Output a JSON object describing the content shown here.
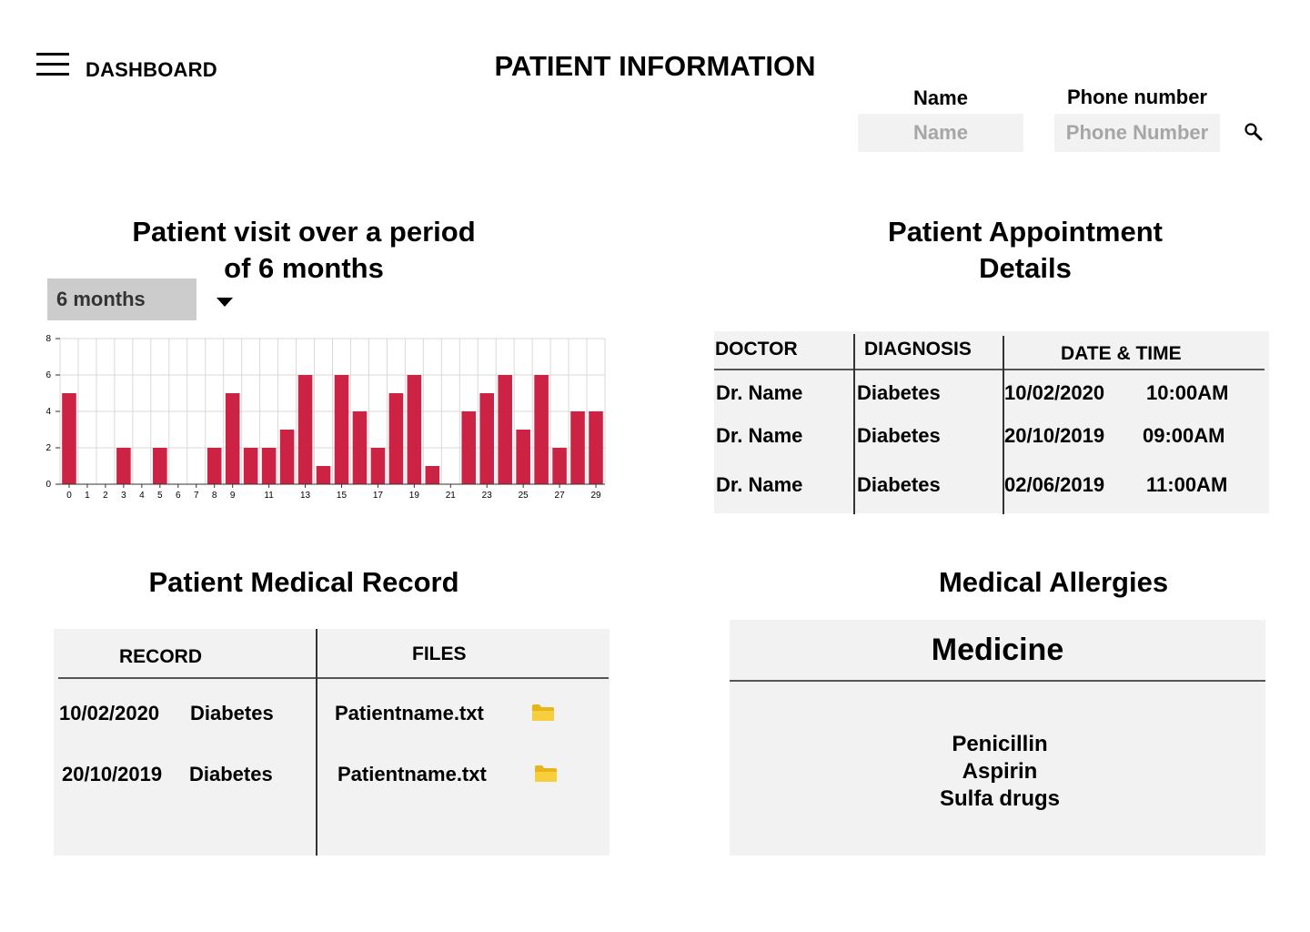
{
  "header": {
    "menu_icon": "hamburger-menu-icon",
    "dashboard_label": "DASHBOARD",
    "page_title": "PATIENT INFORMATION"
  },
  "search": {
    "name_label": "Name",
    "name_placeholder": "Name",
    "phone_label": "Phone number",
    "phone_placeholder": "Phone Number",
    "search_icon": "search-icon"
  },
  "visits": {
    "title_line1": "Patient visit over a period",
    "title_line2": "of 6 months",
    "period_selected": "6 months"
  },
  "appointments": {
    "title_line1": "Patient Appointment",
    "title_line2": "Details",
    "columns": [
      "DOCTOR",
      "DIAGNOSIS",
      "DATE & TIME"
    ],
    "rows": [
      {
        "doctor": "Dr. Name",
        "diagnosis": "Diabetes",
        "date": "10/02/2020",
        "time": "10:00AM"
      },
      {
        "doctor": "Dr. Name",
        "diagnosis": "Diabetes",
        "date": "20/10/2019",
        "time": "09:00AM"
      },
      {
        "doctor": "Dr. Name",
        "diagnosis": "Diabetes",
        "date": "02/06/2019",
        "time": "11:00AM"
      }
    ]
  },
  "medical_record": {
    "title": "Patient Medical Record",
    "columns": [
      "RECORD",
      "FILES"
    ],
    "rows": [
      {
        "date": "10/02/2020",
        "diagnosis": "Diabetes",
        "file": "Patientname.txt",
        "icon": "folder-icon"
      },
      {
        "date": "20/10/2019",
        "diagnosis": "Diabetes",
        "file": "Patientname.txt",
        "icon": "folder-icon"
      }
    ]
  },
  "allergies": {
    "title": "Medical Allergies",
    "column": "Medicine",
    "items": [
      "Penicillin",
      "Aspirin",
      "Sulfa drugs"
    ]
  },
  "colors": {
    "bar": "#cc2244",
    "panel_bg": "#f2f2f2",
    "dropdown_bg": "#cccccc",
    "placeholder": "#a6a6a6"
  },
  "chart_data": {
    "type": "bar",
    "x": [
      0,
      1,
      2,
      3,
      4,
      5,
      6,
      7,
      8,
      9,
      10,
      11,
      12,
      13,
      14,
      15,
      16,
      17,
      18,
      19,
      20,
      21,
      22,
      23,
      24,
      25,
      26,
      27,
      28,
      29
    ],
    "values": [
      5,
      0,
      0,
      2,
      0,
      2,
      0,
      0,
      2,
      5,
      2,
      2,
      3,
      6,
      1,
      6,
      4,
      2,
      5,
      6,
      1,
      0,
      4,
      5,
      6,
      3,
      6,
      2,
      4,
      4
    ],
    "x_tick_labels": [
      "0",
      "1",
      "2",
      "3",
      "4",
      "5",
      "6",
      "7",
      "8",
      "9",
      "11",
      "13",
      "15",
      "17",
      "19",
      "21",
      "23",
      "25",
      "27",
      "29"
    ],
    "y_ticks": [
      0,
      2,
      4,
      6,
      8
    ],
    "ylim": [
      0,
      8
    ],
    "grid": true,
    "legend": "none",
    "title": "",
    "xlabel": "",
    "ylabel": ""
  }
}
